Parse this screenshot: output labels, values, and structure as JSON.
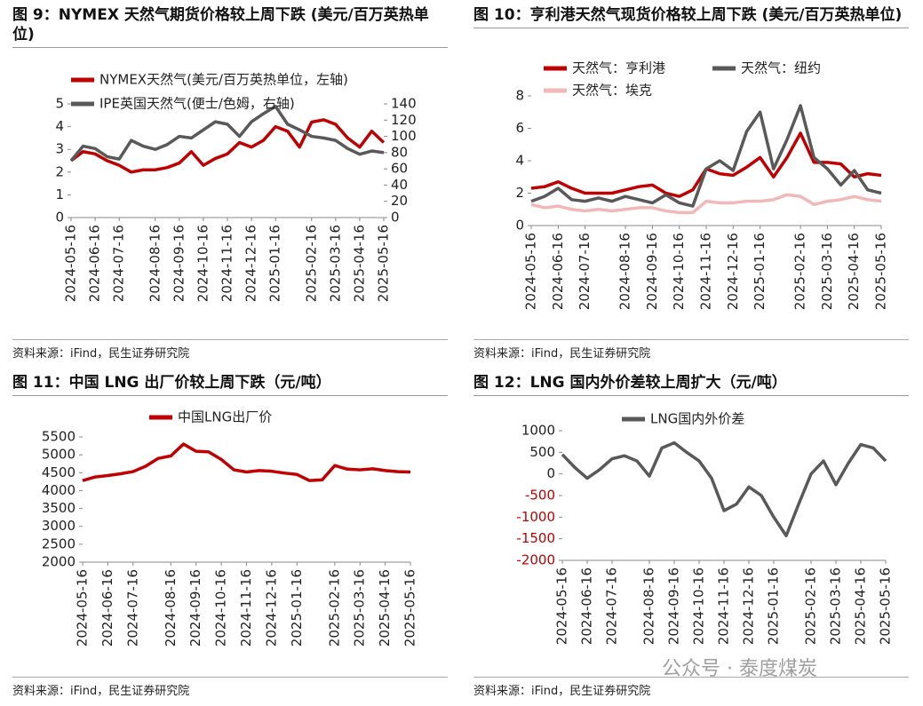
{
  "chart_data": [
    {
      "type": "line",
      "title": "图 9：NYMEX 天然气期货价格较上周下跌 (美元/百万英热单位)",
      "source": "资料来源：iFind，民生证券研究院",
      "categories": [
        "2024-05-16",
        null,
        "2024-06-16",
        null,
        "2024-07-16",
        null,
        null,
        "2024-08-16",
        null,
        "2024-09-16",
        null,
        "2024-10-16",
        null,
        "2024-11-16",
        null,
        "2024-12-16",
        null,
        "2025-01-16",
        null,
        null,
        "2025-02-16",
        null,
        "2025-03-16",
        null,
        "2025-04-16",
        null,
        "2025-05-16"
      ],
      "series": [
        {
          "name": "NYMEX天然气(美元/百万英热单位，左轴)",
          "color": "#c00000",
          "values": [
            2.5,
            2.9,
            2.8,
            2.5,
            2.3,
            2.0,
            2.1,
            2.1,
            2.2,
            2.4,
            2.9,
            2.3,
            2.6,
            2.8,
            3.3,
            3.1,
            3.4,
            4.0,
            3.8,
            3.1,
            4.2,
            4.3,
            4.1,
            3.5,
            3.1,
            3.8,
            3.3
          ]
        },
        {
          "name": "IPE英国天然气(便士/色姆，右轴)",
          "color": "#595959",
          "axis": "y2",
          "values": [
            70,
            88,
            85,
            75,
            72,
            95,
            88,
            84,
            90,
            100,
            98,
            108,
            118,
            115,
            100,
            118,
            128,
            137,
            115,
            108,
            100,
            98,
            95,
            85,
            78,
            82,
            80
          ]
        }
      ],
      "ylim": [
        0,
        5
      ],
      "yticks": [
        0,
        1,
        2,
        3,
        4,
        5
      ],
      "y2lim": [
        0,
        140
      ],
      "y2ticks": [
        0,
        20,
        40,
        60,
        80,
        100,
        120,
        140
      ]
    },
    {
      "type": "line",
      "title": "图 10：亨利港天然气现货价格较上周下跌 (美元/百万英热单位)",
      "source": "资料来源：iFind，民生证券研究院",
      "categories": [
        "2024-05-16",
        null,
        "2024-06-16",
        null,
        "2024-07-16",
        null,
        null,
        "2024-08-16",
        null,
        "2024-09-16",
        null,
        "2024-10-16",
        null,
        "2024-11-16",
        null,
        "2024-12-16",
        null,
        "2025-01-16",
        null,
        null,
        "2025-02-16",
        null,
        "2025-03-16",
        null,
        "2025-04-16",
        null,
        "2025-05-16"
      ],
      "series": [
        {
          "name": "天然气：亨利港",
          "color": "#c00000",
          "values": [
            2.3,
            2.4,
            2.7,
            2.3,
            2.0,
            2.0,
            2.0,
            2.2,
            2.4,
            2.5,
            2.0,
            1.8,
            2.2,
            3.5,
            3.2,
            3.1,
            3.6,
            4.2,
            3.0,
            4.2,
            5.7,
            3.9,
            3.9,
            3.8,
            3.0,
            3.2,
            3.1
          ]
        },
        {
          "name": "天然气：纽约",
          "color": "#595959",
          "values": [
            1.5,
            1.8,
            2.3,
            1.6,
            1.5,
            1.7,
            1.5,
            1.8,
            1.6,
            1.4,
            1.9,
            1.4,
            1.2,
            3.5,
            4.0,
            3.4,
            5.8,
            7.0,
            3.5,
            5.3,
            7.4,
            4.2,
            3.5,
            2.5,
            3.4,
            2.2,
            2.0
          ]
        },
        {
          "name": "天然气：埃克",
          "color": "#f2b8b8",
          "values": [
            1.3,
            1.1,
            1.2,
            1.0,
            0.9,
            1.0,
            0.9,
            1.0,
            1.1,
            1.1,
            0.9,
            0.8,
            0.8,
            1.5,
            1.4,
            1.4,
            1.5,
            1.5,
            1.6,
            1.9,
            1.8,
            1.3,
            1.5,
            1.6,
            1.8,
            1.6,
            1.5
          ]
        }
      ],
      "ylim": [
        0,
        8
      ],
      "yticks": [
        0,
        2,
        4,
        6,
        8
      ]
    },
    {
      "type": "line",
      "title": "图 11：中国 LNG 出厂价较上周下跌（元/吨）",
      "source": "资料来源：iFind，民生证券研究院",
      "categories": [
        "2024-05-16",
        null,
        "2024-06-16",
        null,
        "2024-07-16",
        null,
        null,
        "2024-08-16",
        null,
        "2024-09-16",
        null,
        "2024-10-16",
        null,
        "2024-11-16",
        null,
        "2024-12-16",
        null,
        "2025-01-16",
        null,
        null,
        "2025-02-16",
        null,
        "2025-03-16",
        null,
        "2025-04-16",
        null,
        "2025-05-16"
      ],
      "series": [
        {
          "name": "中国LNG出厂价",
          "color": "#c00000",
          "values": [
            4280,
            4380,
            4420,
            4470,
            4530,
            4680,
            4900,
            4970,
            5300,
            5100,
            5080,
            4870,
            4580,
            4520,
            4560,
            4540,
            4490,
            4450,
            4280,
            4300,
            4700,
            4600,
            4580,
            4610,
            4560,
            4530,
            4520
          ]
        }
      ],
      "ylim": [
        2000,
        5500
      ],
      "yticks": [
        2000,
        2500,
        3000,
        3500,
        4000,
        4500,
        5000,
        5500
      ]
    },
    {
      "type": "line",
      "title": "图 12：LNG 国内外价差较上周扩大（元/吨）",
      "source": "资料来源：iFind，民生证券研究院",
      "categories": [
        "2024-05-16",
        null,
        "2024-06-16",
        null,
        "2024-07-16",
        null,
        null,
        "2024-08-16",
        null,
        "2024-09-16",
        null,
        "2024-10-16",
        null,
        "2024-11-16",
        null,
        "2024-12-16",
        null,
        "2025-01-16",
        null,
        null,
        "2025-02-16",
        null,
        "2025-03-16",
        null,
        "2025-04-16",
        null,
        "2025-05-16"
      ],
      "series": [
        {
          "name": "LNG国内外价差",
          "color": "#595959",
          "values": [
            450,
            150,
            -100,
            100,
            350,
            420,
            300,
            -50,
            600,
            720,
            500,
            300,
            -100,
            -850,
            -700,
            -300,
            -500,
            -1000,
            -1430,
            -700,
            0,
            300,
            -250,
            250,
            680,
            600,
            300
          ]
        }
      ],
      "ylim": [
        -2000,
        1000
      ],
      "yticks": [
        -2000,
        -1500,
        -1000,
        -500,
        0,
        500,
        1000
      ],
      "negative_tick_color": "#c00000"
    }
  ],
  "watermark": "公众号 · 泰度煤炭"
}
